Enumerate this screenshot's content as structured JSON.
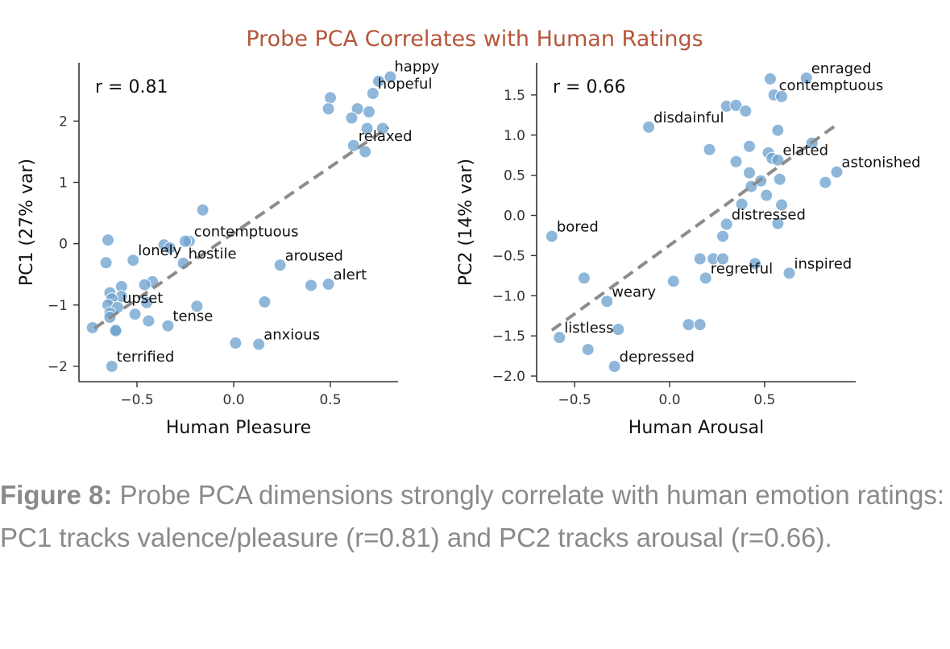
{
  "title": "Probe PCA Correlates with Human Ratings",
  "caption": {
    "label": "Figure 8:",
    "text": " Probe PCA dimensions strongly correlate with human emotion ratings: PC1 tracks valence/pleasure (r=0.81) and PC2 tracks arousal (r=0.66)."
  },
  "chart_data": [
    {
      "type": "scatter",
      "xlabel": "Human Pleasure",
      "ylabel": "PC1 (27% var)",
      "annotation": "r = 0.81",
      "xlim": [
        -0.8,
        0.85
      ],
      "ylim": [
        -2.25,
        2.95
      ],
      "xticks": [
        -0.5,
        0.0,
        0.5
      ],
      "xtick_labels": [
        "−0.5",
        "0.0",
        "0.5"
      ],
      "yticks": [
        -2,
        -1,
        0,
        1,
        2
      ],
      "ytick_labels": [
        "−2",
        "−1",
        "0",
        "1",
        "2"
      ],
      "fit": {
        "x0": -0.72,
        "y0": -1.38,
        "x1": 0.8,
        "y1": 1.9
      },
      "points": [
        {
          "x": 0.81,
          "y": 2.72,
          "label": "happy"
        },
        {
          "x": 0.75,
          "y": 2.65,
          "label": ""
        },
        {
          "x": 0.72,
          "y": 2.45,
          "label": "hopeful"
        },
        {
          "x": 0.5,
          "y": 2.38,
          "label": ""
        },
        {
          "x": 0.49,
          "y": 2.2,
          "label": ""
        },
        {
          "x": 0.64,
          "y": 2.2,
          "label": ""
        },
        {
          "x": 0.7,
          "y": 2.15,
          "label": ""
        },
        {
          "x": 0.61,
          "y": 2.05,
          "label": ""
        },
        {
          "x": 0.77,
          "y": 1.88,
          "label": ""
        },
        {
          "x": 0.69,
          "y": 1.88,
          "label": ""
        },
        {
          "x": 0.62,
          "y": 1.6,
          "label": "relaxed"
        },
        {
          "x": 0.68,
          "y": 1.5,
          "label": ""
        },
        {
          "x": -0.16,
          "y": 0.55,
          "label": ""
        },
        {
          "x": -0.65,
          "y": 0.06,
          "label": ""
        },
        {
          "x": -0.23,
          "y": 0.04,
          "label": "contemptuous"
        },
        {
          "x": -0.25,
          "y": 0.04,
          "label": ""
        },
        {
          "x": -0.36,
          "y": -0.02,
          "label": ""
        },
        {
          "x": -0.33,
          "y": -0.07,
          "label": ""
        },
        {
          "x": -0.52,
          "y": -0.27,
          "label": "lonely"
        },
        {
          "x": -0.66,
          "y": -0.31,
          "label": ""
        },
        {
          "x": -0.26,
          "y": -0.32,
          "label": "hostile"
        },
        {
          "x": 0.24,
          "y": -0.35,
          "label": "aroused"
        },
        {
          "x": -0.42,
          "y": -0.62,
          "label": ""
        },
        {
          "x": -0.46,
          "y": -0.67,
          "label": ""
        },
        {
          "x": -0.58,
          "y": -0.7,
          "label": ""
        },
        {
          "x": 0.49,
          "y": -0.66,
          "label": "alert"
        },
        {
          "x": 0.4,
          "y": -0.68,
          "label": ""
        },
        {
          "x": -0.64,
          "y": -0.8,
          "label": ""
        },
        {
          "x": -0.58,
          "y": -0.86,
          "label": ""
        },
        {
          "x": -0.63,
          "y": -0.9,
          "label": ""
        },
        {
          "x": 0.16,
          "y": -0.95,
          "label": ""
        },
        {
          "x": -0.45,
          "y": -0.96,
          "label": ""
        },
        {
          "x": -0.65,
          "y": -1.0,
          "label": ""
        },
        {
          "x": -0.19,
          "y": -1.02,
          "label": ""
        },
        {
          "x": -0.6,
          "y": -1.04,
          "label": "upset"
        },
        {
          "x": -0.64,
          "y": -1.13,
          "label": ""
        },
        {
          "x": -0.51,
          "y": -1.15,
          "label": ""
        },
        {
          "x": -0.64,
          "y": -1.2,
          "label": ""
        },
        {
          "x": -0.44,
          "y": -1.26,
          "label": ""
        },
        {
          "x": -0.34,
          "y": -1.34,
          "label": "tense"
        },
        {
          "x": -0.73,
          "y": -1.37,
          "label": ""
        },
        {
          "x": -0.61,
          "y": -1.4,
          "label": ""
        },
        {
          "x": -0.61,
          "y": -1.42,
          "label": ""
        },
        {
          "x": 0.01,
          "y": -1.62,
          "label": ""
        },
        {
          "x": 0.13,
          "y": -1.64,
          "label": "anxious"
        },
        {
          "x": -0.63,
          "y": -2.0,
          "label": "terrified"
        }
      ]
    },
    {
      "type": "scatter",
      "xlabel": "Human Arousal",
      "ylabel": "PC2 (14% var)",
      "annotation": "r = 0.66",
      "xlim": [
        -0.7,
        0.98
      ],
      "ylim": [
        -2.07,
        1.9
      ],
      "xticks": [
        -0.5,
        0.0,
        0.5
      ],
      "xtick_labels": [
        "−0.5",
        "0.0",
        "0.5"
      ],
      "yticks": [
        -2.0,
        -1.5,
        -1.0,
        -0.5,
        0.0,
        0.5,
        1.0,
        1.5
      ],
      "ytick_labels": [
        "−2.0",
        "−1.5",
        "−1.0",
        "−0.5",
        "0.0",
        "0.5",
        "1.0",
        "1.5"
      ],
      "fit": {
        "x0": -0.62,
        "y0": -1.43,
        "x1": 0.88,
        "y1": 1.13
      },
      "points": [
        {
          "x": 0.72,
          "y": 1.71,
          "label": "enraged"
        },
        {
          "x": 0.53,
          "y": 1.7,
          "label": ""
        },
        {
          "x": 0.55,
          "y": 1.5,
          "label": "contemptuous"
        },
        {
          "x": 0.59,
          "y": 1.48,
          "label": ""
        },
        {
          "x": 0.3,
          "y": 1.36,
          "label": ""
        },
        {
          "x": 0.35,
          "y": 1.37,
          "label": ""
        },
        {
          "x": 0.4,
          "y": 1.3,
          "label": ""
        },
        {
          "x": -0.11,
          "y": 1.1,
          "label": "disdainful"
        },
        {
          "x": 0.57,
          "y": 1.06,
          "label": ""
        },
        {
          "x": 0.75,
          "y": 0.9,
          "label": ""
        },
        {
          "x": 0.42,
          "y": 0.86,
          "label": ""
        },
        {
          "x": 0.21,
          "y": 0.82,
          "label": ""
        },
        {
          "x": 0.52,
          "y": 0.78,
          "label": ""
        },
        {
          "x": 0.54,
          "y": 0.71,
          "label": ""
        },
        {
          "x": 0.57,
          "y": 0.69,
          "label": "elated"
        },
        {
          "x": 0.35,
          "y": 0.67,
          "label": ""
        },
        {
          "x": 0.88,
          "y": 0.54,
          "label": "astonished"
        },
        {
          "x": 0.42,
          "y": 0.53,
          "label": ""
        },
        {
          "x": 0.58,
          "y": 0.45,
          "label": ""
        },
        {
          "x": 0.48,
          "y": 0.43,
          "label": ""
        },
        {
          "x": 0.82,
          "y": 0.41,
          "label": ""
        },
        {
          "x": 0.43,
          "y": 0.36,
          "label": ""
        },
        {
          "x": 0.51,
          "y": 0.25,
          "label": ""
        },
        {
          "x": 0.38,
          "y": 0.14,
          "label": ""
        },
        {
          "x": 0.59,
          "y": 0.13,
          "label": ""
        },
        {
          "x": 0.3,
          "y": -0.11,
          "label": "distressed"
        },
        {
          "x": 0.57,
          "y": -0.1,
          "label": ""
        },
        {
          "x": -0.62,
          "y": -0.26,
          "label": "bored"
        },
        {
          "x": 0.28,
          "y": -0.26,
          "label": ""
        },
        {
          "x": 0.16,
          "y": -0.54,
          "label": ""
        },
        {
          "x": 0.23,
          "y": -0.54,
          "label": ""
        },
        {
          "x": 0.28,
          "y": -0.54,
          "label": ""
        },
        {
          "x": 0.45,
          "y": -0.6,
          "label": ""
        },
        {
          "x": 0.63,
          "y": -0.72,
          "label": "inspired"
        },
        {
          "x": 0.19,
          "y": -0.78,
          "label": "regretful"
        },
        {
          "x": -0.45,
          "y": -0.78,
          "label": ""
        },
        {
          "x": 0.02,
          "y": -0.82,
          "label": ""
        },
        {
          "x": -0.33,
          "y": -1.07,
          "label": "weary"
        },
        {
          "x": 0.1,
          "y": -1.36,
          "label": ""
        },
        {
          "x": 0.16,
          "y": -1.36,
          "label": ""
        },
        {
          "x": -0.27,
          "y": -1.42,
          "label": ""
        },
        {
          "x": -0.58,
          "y": -1.52,
          "label": "listless"
        },
        {
          "x": -0.43,
          "y": -1.67,
          "label": ""
        },
        {
          "x": -0.29,
          "y": -1.88,
          "label": "depressed"
        }
      ]
    }
  ]
}
